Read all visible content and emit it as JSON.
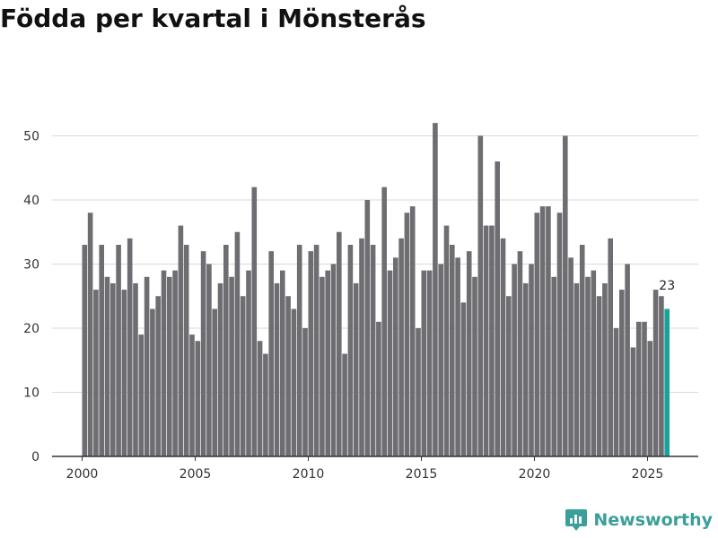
{
  "title": "Födda per kvartal i Mönsterås",
  "brand": "Newsworthy",
  "colors": {
    "bar": "#6d6d72",
    "highlight": "#17a398",
    "grid": "#d9d9d9",
    "axis": "#333333",
    "brand": "#3a9f9a"
  },
  "chart_data": {
    "type": "bar",
    "title": "Födda per kvartal i Mönsterås",
    "xlabel": "",
    "ylabel": "",
    "ylim": [
      0,
      53
    ],
    "yticks": [
      0,
      10,
      20,
      30,
      40,
      50
    ],
    "xticks": [
      "2000",
      "2005",
      "2010",
      "2015",
      "2020",
      "2025"
    ],
    "categories": [
      "2000 Q1",
      "2000 Q2",
      "2000 Q3",
      "2000 Q4",
      "2001 Q1",
      "2001 Q2",
      "2001 Q3",
      "2001 Q4",
      "2002 Q1",
      "2002 Q2",
      "2002 Q3",
      "2002 Q4",
      "2003 Q1",
      "2003 Q2",
      "2003 Q3",
      "2003 Q4",
      "2004 Q1",
      "2004 Q2",
      "2004 Q3",
      "2004 Q4",
      "2005 Q1",
      "2005 Q2",
      "2005 Q3",
      "2005 Q4",
      "2006 Q1",
      "2006 Q2",
      "2006 Q3",
      "2006 Q4",
      "2007 Q1",
      "2007 Q2",
      "2007 Q3",
      "2007 Q4",
      "2008 Q1",
      "2008 Q2",
      "2008 Q3",
      "2008 Q4",
      "2009 Q1",
      "2009 Q2",
      "2009 Q3",
      "2009 Q4",
      "2010 Q1",
      "2010 Q2",
      "2010 Q3",
      "2010 Q4",
      "2011 Q1",
      "2011 Q2",
      "2011 Q3",
      "2011 Q4",
      "2012 Q1",
      "2012 Q2",
      "2012 Q3",
      "2012 Q4",
      "2013 Q1",
      "2013 Q2",
      "2013 Q3",
      "2013 Q4",
      "2014 Q1",
      "2014 Q2",
      "2014 Q3",
      "2014 Q4",
      "2015 Q1",
      "2015 Q2",
      "2015 Q3",
      "2015 Q4",
      "2016 Q1",
      "2016 Q2",
      "2016 Q3",
      "2016 Q4",
      "2017 Q1",
      "2017 Q2",
      "2017 Q3",
      "2017 Q4",
      "2018 Q1",
      "2018 Q2",
      "2018 Q3",
      "2018 Q4",
      "2019 Q1",
      "2019 Q2",
      "2019 Q3",
      "2019 Q4",
      "2020 Q1",
      "2020 Q2",
      "2020 Q3",
      "2020 Q4",
      "2021 Q1",
      "2021 Q2",
      "2021 Q3",
      "2021 Q4",
      "2022 Q1",
      "2022 Q2",
      "2022 Q3",
      "2022 Q4",
      "2023 Q1",
      "2023 Q2",
      "2023 Q3",
      "2023 Q4",
      "2024 Q1",
      "2024 Q2",
      "2024 Q3",
      "2024 Q4",
      "2025 Q1",
      "2025 Q2",
      "2025 Q3",
      "2025 Q4"
    ],
    "values": [
      33,
      38,
      26,
      33,
      28,
      27,
      33,
      26,
      34,
      27,
      19,
      28,
      23,
      25,
      29,
      28,
      29,
      36,
      33,
      19,
      18,
      32,
      30,
      23,
      27,
      33,
      28,
      35,
      25,
      29,
      42,
      18,
      16,
      32,
      27,
      29,
      25,
      23,
      33,
      20,
      32,
      33,
      28,
      29,
      30,
      35,
      16,
      33,
      27,
      34,
      40,
      33,
      21,
      42,
      29,
      31,
      34,
      38,
      39,
      20,
      29,
      29,
      52,
      30,
      36,
      33,
      31,
      24,
      32,
      28,
      50,
      36,
      36,
      46,
      34,
      25,
      30,
      32,
      27,
      30,
      38,
      39,
      39,
      28,
      38,
      50,
      31,
      27,
      33,
      28,
      29,
      25,
      27,
      34,
      20,
      26,
      30,
      17,
      21,
      21,
      18,
      26,
      25,
      23
    ],
    "highlight_last": true,
    "last_label": "23"
  }
}
